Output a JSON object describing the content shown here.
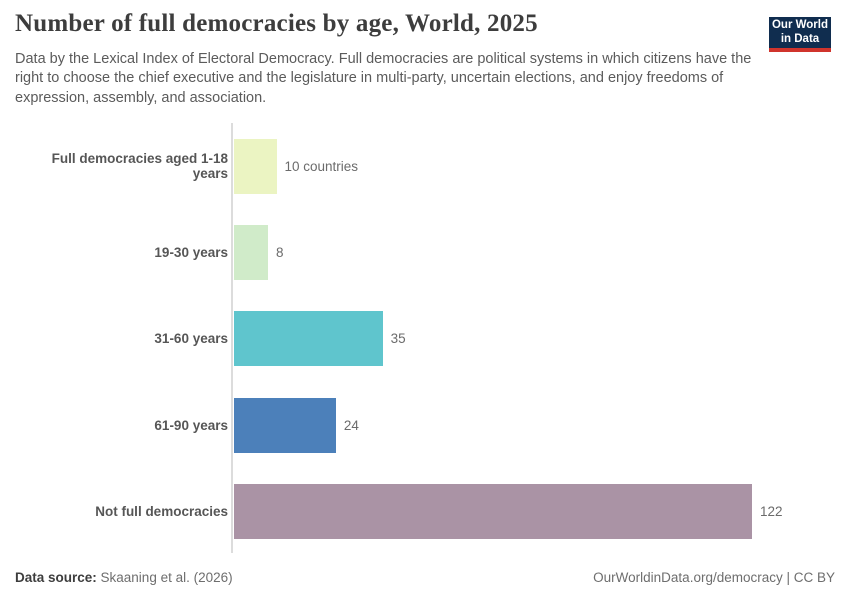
{
  "header": {
    "title": "Number of full democracies by age, World, 2025",
    "subtitle": "Data by the Lexical Index of Electoral Democracy. Full democracies are political systems in which citizens have the right to choose the chief executive and the legislature in multi-party, uncertain elections, and enjoy freedoms of expression, assembly, and association.",
    "logo": {
      "line1": "Our World",
      "line2": "in Data"
    }
  },
  "chart_data": {
    "type": "bar",
    "orientation": "horizontal",
    "title": "Number of full democracies by age, World, 2025",
    "categories": [
      "Full democracies aged 1-18 years",
      "19-30 years",
      "31-60 years",
      "61-90 years",
      "Not full democracies"
    ],
    "values": [
      10,
      8,
      35,
      24,
      122
    ],
    "xlim": [
      0,
      122
    ],
    "grid": false,
    "legend": "none",
    "rows": [
      {
        "label": "Full democracies aged 1-18 years",
        "value": 10,
        "value_label": "10 countries",
        "color": "#ebf4c2"
      },
      {
        "label": "19-30 years",
        "value": 8,
        "value_label": "8",
        "color": "#d0ebc9"
      },
      {
        "label": "31-60 years",
        "value": 35,
        "value_label": "35",
        "color": "#5fc5cd"
      },
      {
        "label": "61-90 years",
        "value": 24,
        "value_label": "24",
        "color": "#4c80ba"
      },
      {
        "label": "Not full democracies",
        "value": 122,
        "value_label": "122",
        "color": "#aa93a5"
      }
    ]
  },
  "footer": {
    "data_source_label": "Data source:",
    "data_source_value": " Skaaning et al. (2026)",
    "attribution": "OurWorldinData.org/democracy | CC BY"
  },
  "colors": {
    "logo_bg": "#102d4f",
    "logo_underline": "#d0342c",
    "axis_line": "#dcdcdc"
  }
}
